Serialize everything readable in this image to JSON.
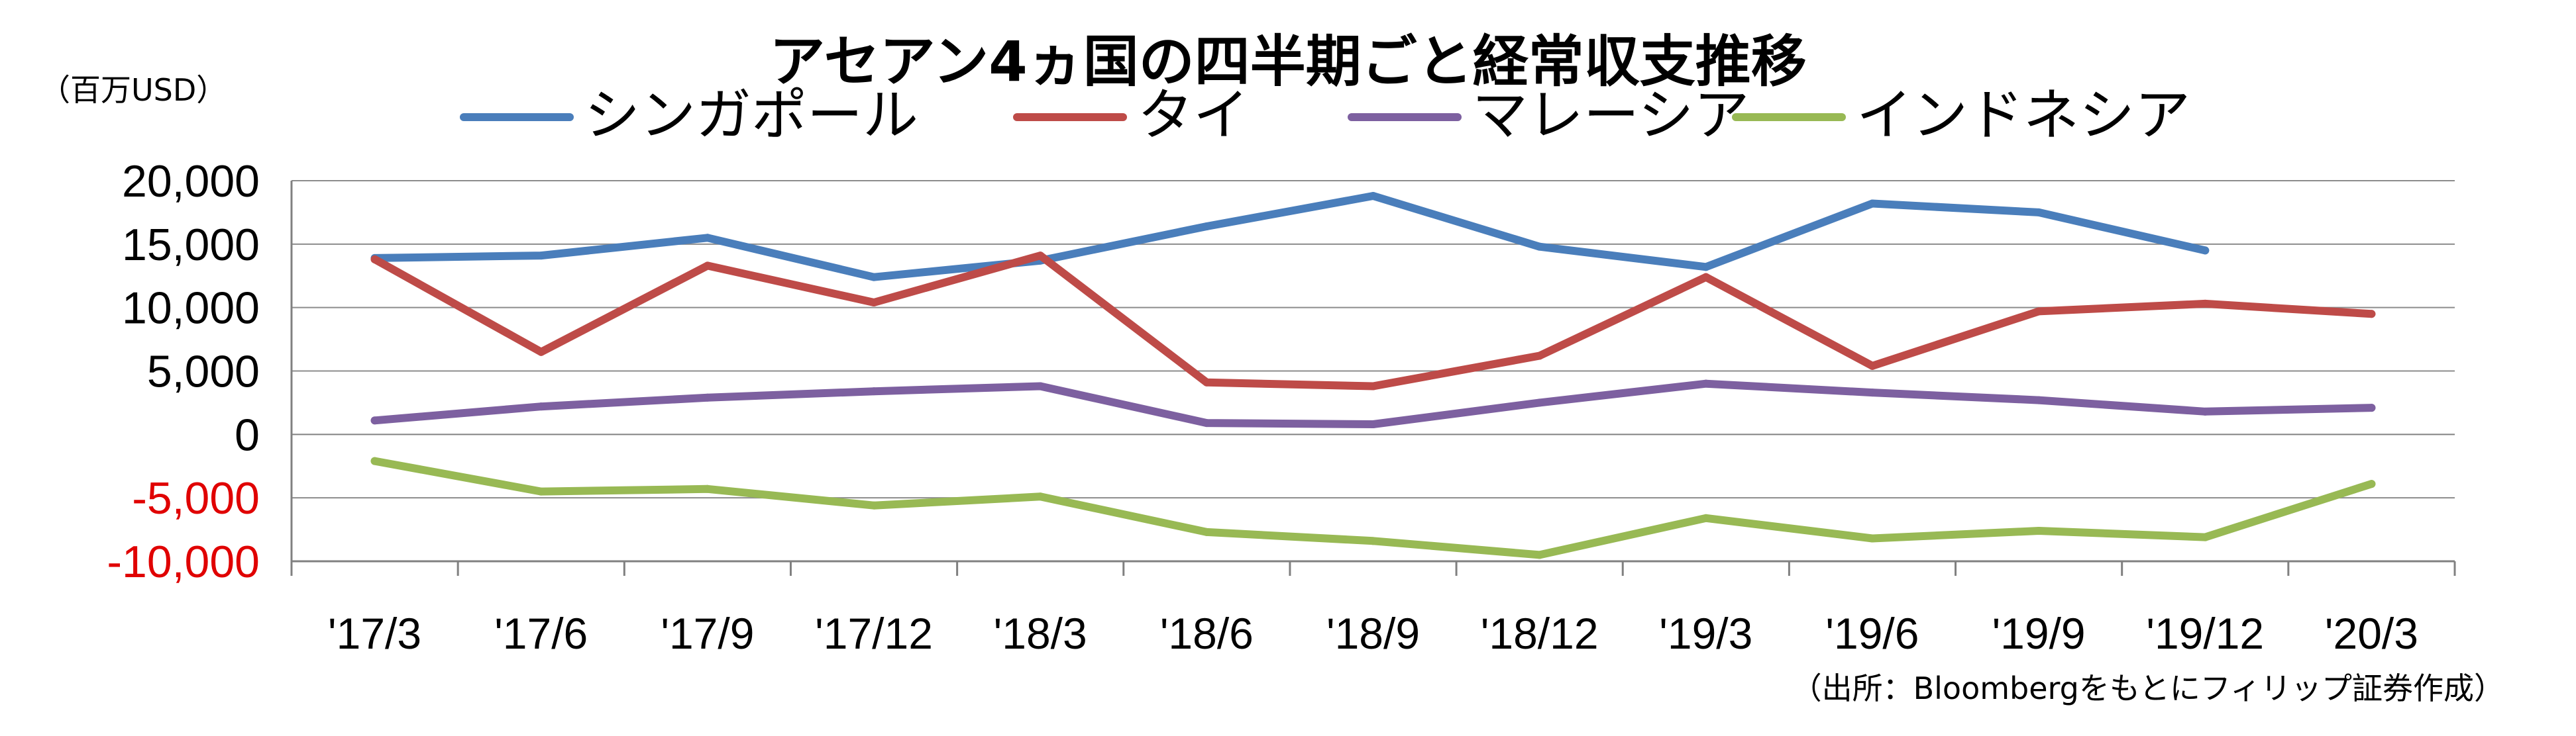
{
  "chart_data": {
    "type": "line",
    "title": "アセアン4ヵ国の四半期ごと経常収支推移",
    "unit_label": "（百万USD）",
    "source": "（出所：Bloombergをもとにフィリップ証券作成）",
    "categories": [
      "'17/3",
      "'17/6",
      "'17/9",
      "'17/12",
      "'18/3",
      "'18/6",
      "'18/9",
      "'18/12",
      "'19/3",
      "'19/6",
      "'19/9",
      "'19/12",
      "'20/3"
    ],
    "yticks": [
      "20,000",
      "15,000",
      "10,000",
      "5,000",
      "0",
      "-5,000",
      "-10,000"
    ],
    "ylim": [
      -10000,
      20000
    ],
    "grid": true,
    "legend_position": "top",
    "negative_tick_color": "#e00000",
    "series": [
      {
        "name": "シンガポール",
        "color": "#4a7ebb",
        "values": [
          13900,
          14100,
          15500,
          12400,
          13700,
          16400,
          18800,
          14800,
          13200,
          18200,
          17500,
          14500,
          null
        ]
      },
      {
        "name": "タイ",
        "color": "#be4b48",
        "values": [
          13800,
          6500,
          13300,
          10400,
          14100,
          4100,
          3800,
          6200,
          12400,
          5400,
          9700,
          10300,
          9500
        ]
      },
      {
        "name": "マレーシア",
        "color": "#7d60a0",
        "values": [
          1100,
          2200,
          2900,
          3400,
          3800,
          900,
          800,
          2500,
          4000,
          3300,
          2700,
          1800,
          2100
        ]
      },
      {
        "name": "インドネシア",
        "color": "#98b954",
        "values": [
          -2100,
          -4500,
          -4300,
          -5600,
          -4900,
          -7700,
          -8400,
          -9500,
          -6600,
          -8200,
          -7600,
          -8100,
          -3900
        ]
      }
    ]
  }
}
